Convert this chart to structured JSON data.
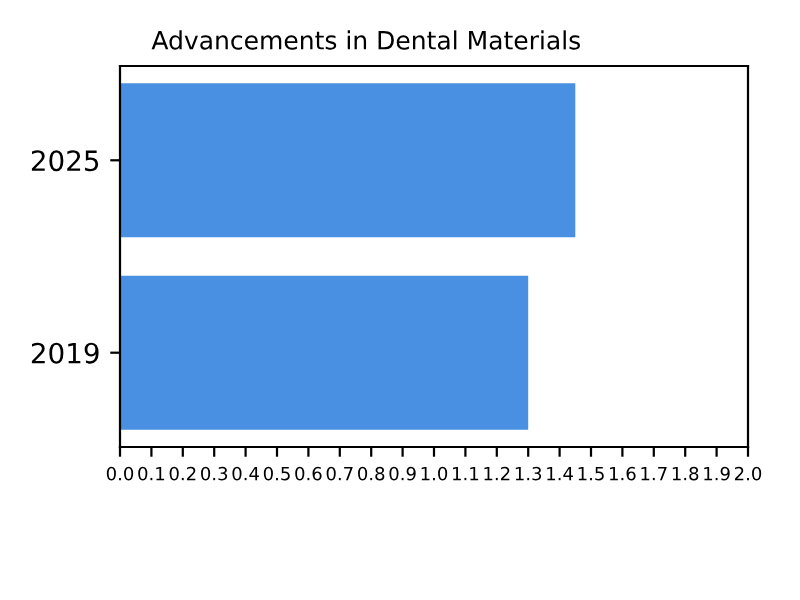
{
  "chart_data": {
    "type": "bar",
    "orientation": "horizontal",
    "title": "Advancements in Dental Materials",
    "categories": [
      "2025",
      "2019"
    ],
    "values": [
      1.45,
      1.3
    ],
    "color": "#4a90e2",
    "xlim": [
      0,
      2.0
    ],
    "xticks": [
      {
        "value": 0,
        "label": "0.0"
      },
      0.1,
      0.2,
      0.3,
      0.4,
      0.5,
      0.6,
      0.7,
      0.8,
      0.9,
      {
        "value": 1,
        "label": "1.0"
      },
      1.1,
      1.2,
      1.3,
      1.4,
      1.5,
      1.6,
      1.7,
      1.8,
      1.9,
      {
        "value": 2,
        "label": "2.0"
      }
    ],
    "grid": false,
    "legend": false
  }
}
